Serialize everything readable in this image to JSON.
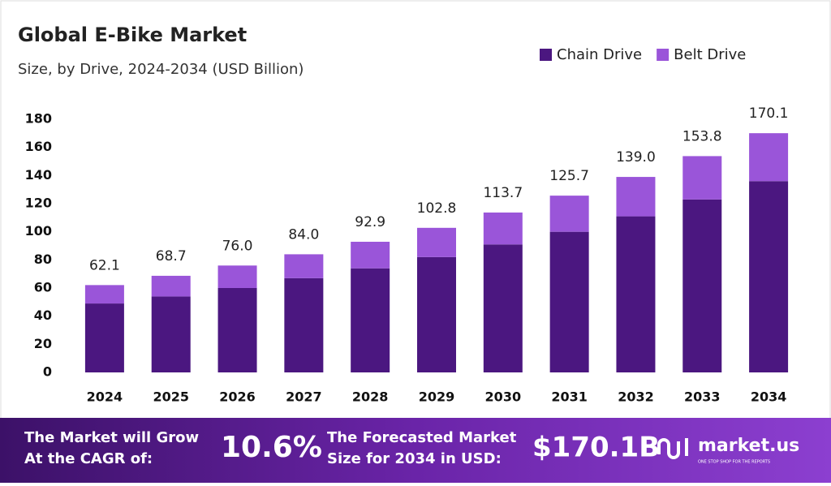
{
  "chart_data": {
    "type": "stacked-bar",
    "title": "Global E-Bike Market",
    "subtitle": "Size, by Drive, 2024-2034 (USD Billion)",
    "categories": [
      "2024",
      "2025",
      "2026",
      "2027",
      "2028",
      "2029",
      "2030",
      "2031",
      "2032",
      "2033",
      "2034"
    ],
    "series": [
      {
        "name": "Chain Drive",
        "color": "#4b1780",
        "values": [
          49,
          54,
          60,
          67,
          74,
          82,
          91,
          100,
          111,
          123,
          136
        ]
      },
      {
        "name": "Belt Drive",
        "color": "#9a55d9",
        "values": [
          13.1,
          14.7,
          16,
          17,
          18.9,
          20.8,
          22.7,
          25.7,
          28,
          30.8,
          34.1
        ]
      }
    ],
    "totals": [
      62.1,
      68.7,
      76,
      84,
      92.9,
      102.8,
      113.7,
      125.7,
      139,
      153.8,
      170.1
    ],
    "total_labels": [
      "62.1",
      "68.7",
      "76.0",
      "84.0",
      "92.9",
      "102.8",
      "113.7",
      "125.7",
      "139.0",
      "153.8",
      "170.1"
    ],
    "ylim": [
      0,
      180
    ],
    "yticks": [
      0,
      20,
      40,
      60,
      80,
      100,
      120,
      140,
      160,
      180
    ],
    "legend": "top-right"
  },
  "banner": {
    "grow_line1": "The Market will Grow",
    "grow_line2": "At the CAGR of:",
    "cagr": "10.6%",
    "forecast_line1": "The Forecasted Market",
    "forecast_line2": "Size for 2034 in USD:",
    "forecast_value": "$170.1B",
    "brand": "market.us",
    "tagline": "ONE STOP SHOP FOR THE REPORTS"
  }
}
